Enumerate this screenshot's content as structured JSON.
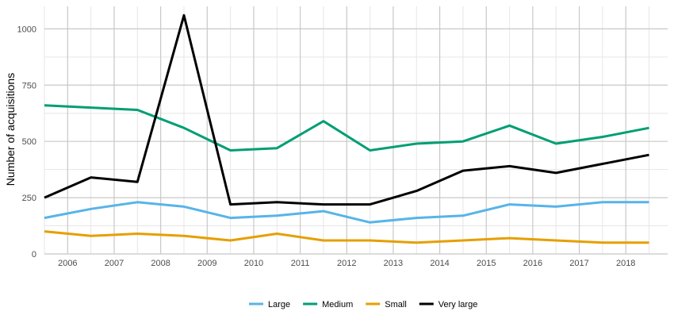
{
  "chart_data": {
    "type": "line",
    "title": "",
    "xlabel": "",
    "ylabel": "Number of acquisitions",
    "x": [
      2005.5,
      2006.5,
      2007.5,
      2008.5,
      2009.5,
      2010.5,
      2011.5,
      2012.5,
      2013.5,
      2014.5,
      2015.5,
      2016.5,
      2017.5,
      2018.5
    ],
    "xlim": [
      2005.5,
      2018.9
    ],
    "ylim": [
      0,
      1100
    ],
    "xticks": [
      "2006",
      "2007",
      "2008",
      "2009",
      "2010",
      "2011",
      "2012",
      "2013",
      "2014",
      "2015",
      "2016",
      "2017",
      "2018"
    ],
    "yticks": [
      "0",
      "250",
      "500",
      "750",
      "1000"
    ],
    "grid": true,
    "legend_position": "bottom",
    "series": [
      {
        "name": "Large",
        "color": "#56B4E9",
        "values": [
          160,
          200,
          230,
          210,
          160,
          170,
          190,
          140,
          160,
          170,
          220,
          210,
          230,
          230
        ]
      },
      {
        "name": "Medium",
        "color": "#009E73",
        "values": [
          660,
          650,
          640,
          560,
          460,
          470,
          590,
          460,
          490,
          500,
          570,
          490,
          520,
          560
        ]
      },
      {
        "name": "Small",
        "color": "#E69F00",
        "values": [
          100,
          80,
          90,
          80,
          60,
          90,
          60,
          60,
          50,
          60,
          70,
          60,
          50,
          50
        ]
      },
      {
        "name": "Very large",
        "color": "#000000",
        "values": [
          250,
          340,
          320,
          1060,
          220,
          230,
          220,
          220,
          280,
          370,
          390,
          360,
          400,
          440
        ]
      }
    ]
  }
}
